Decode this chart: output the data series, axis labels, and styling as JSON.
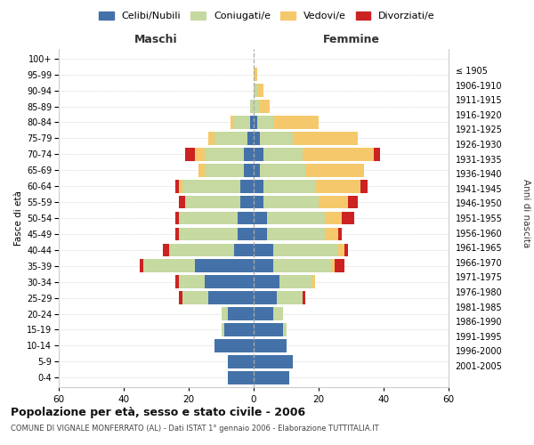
{
  "age_groups": [
    "0-4",
    "5-9",
    "10-14",
    "15-19",
    "20-24",
    "25-29",
    "30-34",
    "35-39",
    "40-44",
    "45-49",
    "50-54",
    "55-59",
    "60-64",
    "65-69",
    "70-74",
    "75-79",
    "80-84",
    "85-89",
    "90-94",
    "95-99",
    "100+"
  ],
  "birth_years": [
    "2001-2005",
    "1996-2000",
    "1991-1995",
    "1986-1990",
    "1981-1985",
    "1976-1980",
    "1971-1975",
    "1966-1970",
    "1961-1965",
    "1956-1960",
    "1951-1955",
    "1946-1950",
    "1941-1945",
    "1936-1940",
    "1931-1935",
    "1926-1930",
    "1921-1925",
    "1916-1920",
    "1911-1915",
    "1906-1910",
    "≤ 1905"
  ],
  "maschi": {
    "celibi": [
      8,
      8,
      12,
      9,
      8,
      14,
      15,
      18,
      6,
      5,
      5,
      4,
      4,
      3,
      3,
      2,
      1,
      0,
      0,
      0,
      0
    ],
    "coniugati": [
      0,
      0,
      0,
      1,
      2,
      8,
      8,
      16,
      20,
      18,
      18,
      17,
      18,
      12,
      12,
      10,
      5,
      1,
      0,
      0,
      0
    ],
    "vedovi": [
      0,
      0,
      0,
      0,
      0,
      0,
      0,
      0,
      0,
      0,
      0,
      0,
      1,
      2,
      3,
      2,
      1,
      0,
      0,
      0,
      0
    ],
    "divorziati": [
      0,
      0,
      0,
      0,
      0,
      1,
      1,
      1,
      2,
      1,
      1,
      2,
      1,
      0,
      3,
      0,
      0,
      0,
      0,
      0,
      0
    ]
  },
  "femmine": {
    "nubili": [
      11,
      12,
      10,
      9,
      6,
      7,
      8,
      6,
      6,
      4,
      4,
      3,
      3,
      2,
      3,
      2,
      1,
      0,
      0,
      0,
      0
    ],
    "coniugate": [
      0,
      0,
      0,
      1,
      3,
      8,
      10,
      18,
      20,
      18,
      18,
      17,
      16,
      14,
      12,
      10,
      5,
      2,
      1,
      0,
      0
    ],
    "vedove": [
      0,
      0,
      0,
      0,
      0,
      0,
      1,
      1,
      2,
      4,
      5,
      9,
      14,
      18,
      22,
      20,
      14,
      3,
      2,
      1,
      0
    ],
    "divorziate": [
      0,
      0,
      0,
      0,
      0,
      1,
      0,
      3,
      1,
      1,
      4,
      3,
      2,
      0,
      2,
      0,
      0,
      0,
      0,
      0,
      0
    ]
  },
  "colors": {
    "celibi": "#4472a8",
    "coniugati": "#c5d9a0",
    "vedovi": "#f5c96b",
    "divorziati": "#cc2222"
  },
  "title": "Popolazione per età, sesso e stato civile - 2006",
  "subtitle": "COMUNE DI VIGNALE MONFERRATO (AL) - Dati ISTAT 1° gennaio 2006 - Elaborazione TUTTITALIA.IT",
  "xlabel_maschi": "Maschi",
  "xlabel_femmine": "Femmine",
  "ylabel_left": "Fasce di età",
  "ylabel_right": "Anni di nascita",
  "xlim": 60,
  "legend_labels": [
    "Celibi/Nubili",
    "Coniugati/e",
    "Vedovi/e",
    "Divorziati/e"
  ]
}
